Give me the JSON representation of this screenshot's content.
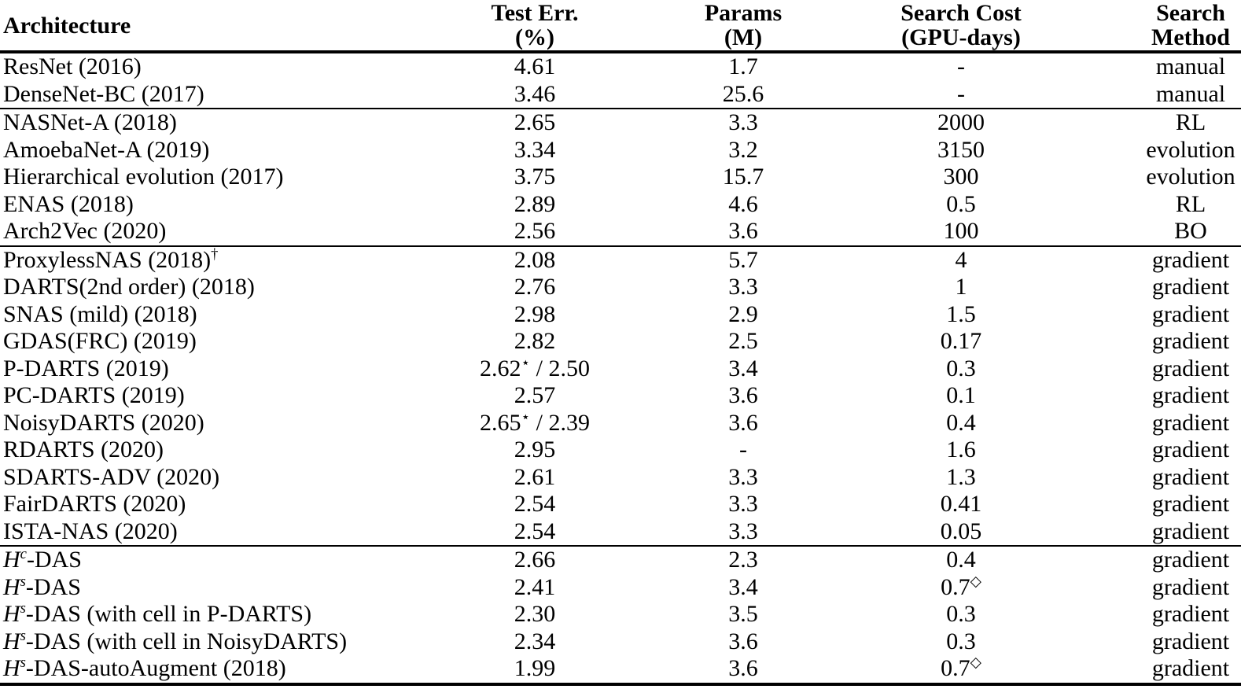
{
  "colors": {
    "text": "#000000",
    "background": "#ffffff",
    "rule": "#000000"
  },
  "table": {
    "columns": [
      {
        "id": "architecture",
        "label": "Architecture",
        "label2": ""
      },
      {
        "id": "test_err",
        "label": "Test Err.",
        "label2": "(%)"
      },
      {
        "id": "params",
        "label": "Params",
        "label2": "(M)"
      },
      {
        "id": "search_cost",
        "label": "Search Cost",
        "label2": "(GPU-days)"
      },
      {
        "id": "method",
        "label": "Search",
        "label2": "Method"
      }
    ],
    "sections": [
      {
        "rows": [
          {
            "architecture": "ResNet (2016)",
            "test_err": "4.61",
            "params": "1.7",
            "search_cost": "-",
            "method": "manual"
          },
          {
            "architecture": "DenseNet-BC (2017)",
            "test_err": "3.46",
            "params": "25.6",
            "search_cost": "-",
            "method": "manual"
          }
        ]
      },
      {
        "rows": [
          {
            "architecture": "NASNet-A (2018)",
            "test_err": "2.65",
            "params": "3.3",
            "search_cost": "2000",
            "method": "RL"
          },
          {
            "architecture": "AmoebaNet-A (2019)",
            "test_err": "3.34",
            "params": "3.2",
            "search_cost": "3150",
            "method": "evolution"
          },
          {
            "architecture": "Hierarchical evolution (2017)",
            "test_err": "3.75",
            "params": "15.7",
            "search_cost": "300",
            "method": "evolution"
          },
          {
            "architecture": "ENAS (2018)",
            "test_err": "2.89",
            "params": "4.6",
            "search_cost": "0.5",
            "method": "RL"
          },
          {
            "architecture": "Arch2Vec (2020)",
            "test_err": "2.56",
            "params": "3.6",
            "search_cost": "100",
            "method": "BO"
          }
        ]
      },
      {
        "rows": [
          {
            "architecture": "ProxylessNAS (2018)^{†}",
            "test_err": "2.08",
            "params": "5.7",
            "search_cost": "4",
            "method": "gradient"
          },
          {
            "architecture": "DARTS(2nd order) (2018)",
            "test_err": "2.76",
            "params": "3.3",
            "search_cost": "1",
            "method": "gradient"
          },
          {
            "architecture": "SNAS (mild) (2018)",
            "test_err": "2.98",
            "params": "2.9",
            "search_cost": "1.5",
            "method": "gradient"
          },
          {
            "architecture": "GDAS(FRC) (2019)",
            "test_err": "2.82",
            "params": "2.5",
            "search_cost": "0.17",
            "method": "gradient"
          },
          {
            "architecture": "P-DARTS (2019)",
            "test_err": "2.62^{⋆} / 2.50",
            "params": "3.4",
            "search_cost": "0.3",
            "method": "gradient"
          },
          {
            "architecture": "PC-DARTS (2019)",
            "test_err": "2.57",
            "params": "3.6",
            "search_cost": "0.1",
            "method": "gradient"
          },
          {
            "architecture": "NoisyDARTS (2020)",
            "test_err": "2.65^{⋆} / 2.39",
            "params": "3.6",
            "search_cost": "0.4",
            "method": "gradient"
          },
          {
            "architecture": "RDARTS  (2020)",
            "test_err": "2.95",
            "params": "-",
            "search_cost": "1.6",
            "method": "gradient"
          },
          {
            "architecture": "SDARTS-ADV (2020)",
            "test_err": "2.61",
            "params": "3.3",
            "search_cost": "1.3",
            "method": "gradient"
          },
          {
            "architecture": "FairDARTS (2020)",
            "test_err": "2.54",
            "params": "3.3",
            "search_cost": "0.41",
            "method": "gradient"
          },
          {
            "architecture": "ISTA-NAS (2020)",
            "test_err": "2.54",
            "params": "3.3",
            "search_cost": "0.05",
            "method": "gradient"
          }
        ]
      },
      {
        "rows": [
          {
            "architecture": "$H$^{$c$}-DAS",
            "test_err": "2.66",
            "params": "2.3",
            "search_cost": "0.4",
            "method": "gradient"
          },
          {
            "architecture": "$H$^{$s$}-DAS",
            "test_err": "2.41",
            "params": "3.4",
            "search_cost": "0.7^{◇}",
            "method": "gradient"
          },
          {
            "architecture": "$H$^{$s$}-DAS (with cell in P-DARTS)",
            "test_err": "2.30",
            "params": "3.5",
            "search_cost": "0.3",
            "method": "gradient"
          },
          {
            "architecture": "$H$^{$s$}-DAS (with cell in NoisyDARTS)",
            "test_err": "2.34",
            "params": "3.6",
            "search_cost": "0.3",
            "method": "gradient"
          },
          {
            "architecture": "$H$^{$s$}-DAS-autoAugment (2018)",
            "test_err": "1.99",
            "params": "3.6",
            "search_cost": "0.7^{◇}",
            "method": "gradient"
          }
        ]
      }
    ]
  }
}
